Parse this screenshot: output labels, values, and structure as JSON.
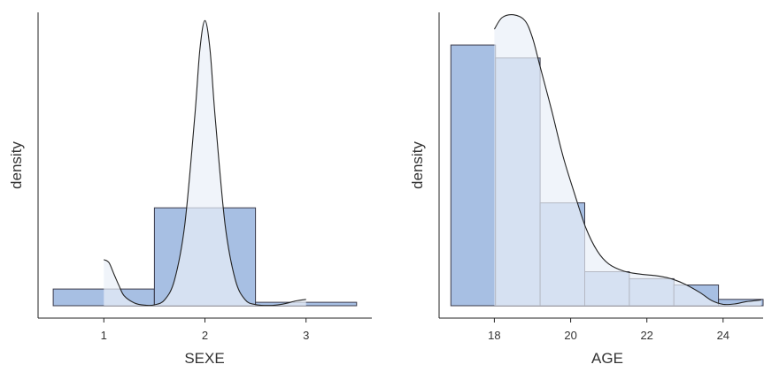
{
  "colors": {
    "bar_fill": "#a7bfe3",
    "bar_stroke": "#3a3a4a",
    "density_fill": "#e9eff8",
    "density_line": "#222222",
    "axis": "#222222",
    "text": "#333333"
  },
  "chart_data": [
    {
      "type": "histogram",
      "xlabel": "SEXE",
      "ylabel": "density",
      "xlim": [
        0.35,
        3.65
      ],
      "ylim": [
        0,
        1.0
      ],
      "xticks": [
        1,
        2,
        3
      ],
      "tick_labels": [
        "1",
        "2",
        "3"
      ],
      "bins": [
        {
          "x0": 0.5,
          "x1": 1.5,
          "density": 0.058
        },
        {
          "x0": 1.5,
          "x1": 2.5,
          "density": 0.34
        },
        {
          "x0": 2.5,
          "x1": 3.5,
          "density": 0.012
        }
      ],
      "density_curve": [
        {
          "x": 1.0,
          "y": 0.16
        },
        {
          "x": 1.05,
          "y": 0.15
        },
        {
          "x": 1.1,
          "y": 0.11
        },
        {
          "x": 1.15,
          "y": 0.07
        },
        {
          "x": 1.2,
          "y": 0.035
        },
        {
          "x": 1.3,
          "y": 0.01
        },
        {
          "x": 1.4,
          "y": 0.002
        },
        {
          "x": 1.5,
          "y": 0.003
        },
        {
          "x": 1.6,
          "y": 0.02
        },
        {
          "x": 1.7,
          "y": 0.09
        },
        {
          "x": 1.8,
          "y": 0.28
        },
        {
          "x": 1.9,
          "y": 0.66
        },
        {
          "x": 1.95,
          "y": 0.89
        },
        {
          "x": 2.0,
          "y": 0.99
        },
        {
          "x": 2.05,
          "y": 0.89
        },
        {
          "x": 2.1,
          "y": 0.66
        },
        {
          "x": 2.2,
          "y": 0.28
        },
        {
          "x": 2.3,
          "y": 0.09
        },
        {
          "x": 2.4,
          "y": 0.02
        },
        {
          "x": 2.5,
          "y": 0.004
        },
        {
          "x": 2.6,
          "y": 0.001
        },
        {
          "x": 2.7,
          "y": 0.002
        },
        {
          "x": 2.8,
          "y": 0.008
        },
        {
          "x": 2.9,
          "y": 0.017
        },
        {
          "x": 3.0,
          "y": 0.022
        }
      ],
      "grid": false
    },
    {
      "type": "histogram",
      "xlabel": "AGE",
      "ylabel": "density",
      "xlim": [
        16.55,
        25.05
      ],
      "ylim": [
        0,
        1.0
      ],
      "xticks": [
        18,
        20,
        22,
        24
      ],
      "tick_labels": [
        "18",
        "20",
        "22",
        "24"
      ],
      "bins": [
        {
          "x0": 16.86,
          "x1": 18.03,
          "density": 0.905
        },
        {
          "x0": 18.03,
          "x1": 19.2,
          "density": 0.86
        },
        {
          "x0": 19.2,
          "x1": 20.37,
          "density": 0.357
        },
        {
          "x0": 20.37,
          "x1": 21.54,
          "density": 0.118
        },
        {
          "x0": 21.54,
          "x1": 22.71,
          "density": 0.094
        },
        {
          "x0": 22.71,
          "x1": 23.88,
          "density": 0.072
        },
        {
          "x0": 23.88,
          "x1": 25.05,
          "density": 0.022
        }
      ],
      "density_curve": [
        {
          "x": 18.0,
          "y": 0.96
        },
        {
          "x": 18.2,
          "y": 1.0
        },
        {
          "x": 18.5,
          "y": 1.01
        },
        {
          "x": 18.8,
          "y": 0.99
        },
        {
          "x": 19.0,
          "y": 0.93
        },
        {
          "x": 19.2,
          "y": 0.83
        },
        {
          "x": 19.5,
          "y": 0.68
        },
        {
          "x": 19.8,
          "y": 0.52
        },
        {
          "x": 20.1,
          "y": 0.39
        },
        {
          "x": 20.4,
          "y": 0.27
        },
        {
          "x": 20.7,
          "y": 0.19
        },
        {
          "x": 21.0,
          "y": 0.145
        },
        {
          "x": 21.4,
          "y": 0.12
        },
        {
          "x": 21.8,
          "y": 0.11
        },
        {
          "x": 22.2,
          "y": 0.105
        },
        {
          "x": 22.6,
          "y": 0.095
        },
        {
          "x": 23.0,
          "y": 0.075
        },
        {
          "x": 23.4,
          "y": 0.045
        },
        {
          "x": 23.7,
          "y": 0.018
        },
        {
          "x": 24.0,
          "y": 0.005
        },
        {
          "x": 24.3,
          "y": 0.006
        },
        {
          "x": 24.6,
          "y": 0.014
        },
        {
          "x": 25.0,
          "y": 0.02
        }
      ],
      "grid": false
    }
  ]
}
